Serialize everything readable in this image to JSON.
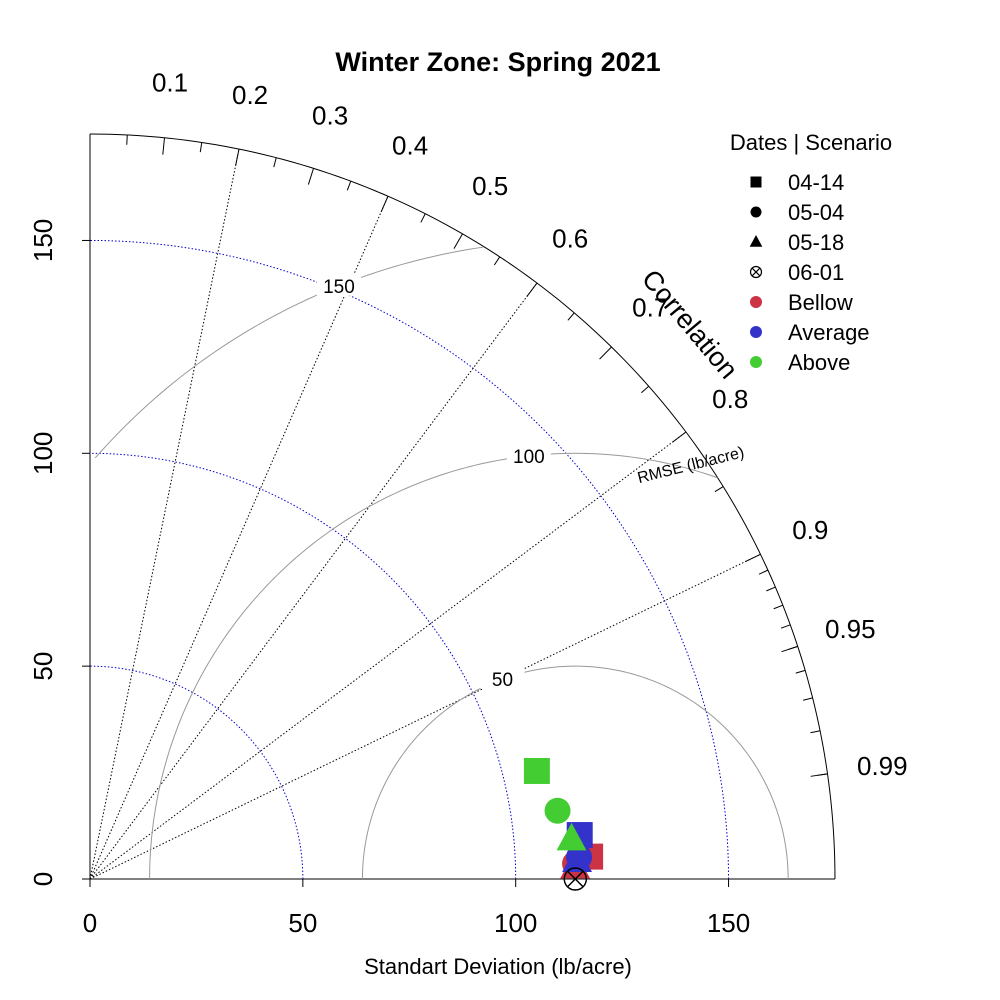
{
  "chart_data": {
    "type": "taylor",
    "title": "Winter Zone: Spring 2021",
    "xlabel": "Standart Deviation (lb/acre)",
    "ylabel": "",
    "arc_label": "Correlation",
    "rmse_label": "RMSE (lb/acre)",
    "sd_max": 175,
    "sd_ticks": [
      "0",
      "50",
      "100",
      "150"
    ],
    "sd_tick_values": [
      0,
      50,
      100,
      150
    ],
    "sd_circles": [
      50,
      100,
      150
    ],
    "reference_sd": 114,
    "rmse_contours": [
      {
        "value": 50,
        "label": "50"
      },
      {
        "value": 100,
        "label": "100"
      },
      {
        "value": 150,
        "label": "150"
      }
    ],
    "correlation_labels": [
      {
        "value": 0.1,
        "label": "0.1"
      },
      {
        "value": 0.2,
        "label": "0.2"
      },
      {
        "value": 0.3,
        "label": "0.3"
      },
      {
        "value": 0.4,
        "label": "0.4"
      },
      {
        "value": 0.5,
        "label": "0.5"
      },
      {
        "value": 0.6,
        "label": "0.6"
      },
      {
        "value": 0.7,
        "label": "0.7"
      },
      {
        "value": 0.8,
        "label": "0.8"
      },
      {
        "value": 0.9,
        "label": "0.9"
      },
      {
        "value": 0.95,
        "label": "0.95"
      },
      {
        "value": 0.99,
        "label": "0.99"
      }
    ],
    "correlation_gridlines": [
      0.2,
      0.4,
      0.6,
      0.8,
      0.9
    ],
    "legend": {
      "title": "Dates | Scenario",
      "entries": [
        {
          "label": "04-14",
          "shape": "square",
          "color": "#000000"
        },
        {
          "label": "05-04",
          "shape": "circle",
          "color": "#000000"
        },
        {
          "label": "05-18",
          "shape": "triangle",
          "color": "#000000"
        },
        {
          "label": "06-01",
          "shape": "circle-x",
          "color": "#000000"
        },
        {
          "label": "Bellow",
          "shape": "dot",
          "color": "#CC3344"
        },
        {
          "label": "Average",
          "shape": "dot",
          "color": "#3333CC"
        },
        {
          "label": "Above",
          "shape": "dot",
          "color": "#44CC33"
        }
      ]
    },
    "colors": {
      "Bellow": "#CC3344",
      "Average": "#3333CC",
      "Above": "#44CC33",
      "sd_grid": "#0000CC",
      "rmse": "#999999"
    },
    "points": [
      {
        "date": "04-14",
        "scenario": "Bellow",
        "sd": 117.6,
        "corr": 0.999
      },
      {
        "date": "04-14",
        "scenario": "Average",
        "sd": 115.5,
        "corr": 0.996
      },
      {
        "date": "04-14",
        "scenario": "Above",
        "sd": 108.0,
        "corr": 0.972
      },
      {
        "date": "05-04",
        "scenario": "Bellow",
        "sd": 114.0,
        "corr": 0.9995
      },
      {
        "date": "05-04",
        "scenario": "Average",
        "sd": 115.0,
        "corr": 0.999
      },
      {
        "date": "05-04",
        "scenario": "Above",
        "sd": 111.0,
        "corr": 0.9895
      },
      {
        "date": "05-18",
        "scenario": "Bellow",
        "sd": 114.0,
        "corr": 0.9997
      },
      {
        "date": "05-18",
        "scenario": "Average",
        "sd": 114.5,
        "corr": 0.9993
      },
      {
        "date": "05-18",
        "scenario": "Above",
        "sd": 113.5,
        "corr": 0.9966
      },
      {
        "date": "06-01",
        "scenario": "Bellow",
        "sd": 114.0,
        "corr": 1.0
      },
      {
        "date": "06-01",
        "scenario": "Average",
        "sd": 114.0,
        "corr": 1.0
      },
      {
        "date": "06-01",
        "scenario": "Above",
        "sd": 114.0,
        "corr": 1.0
      }
    ]
  }
}
